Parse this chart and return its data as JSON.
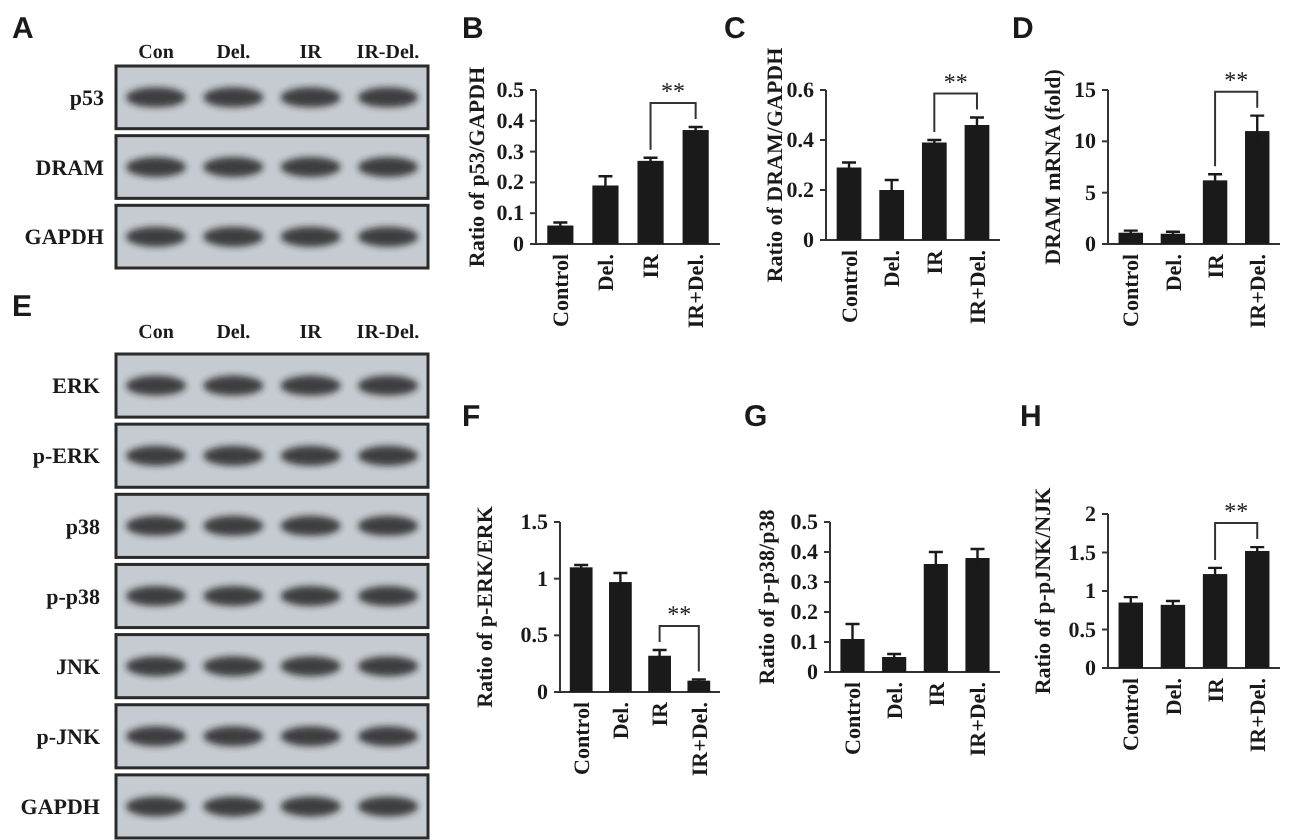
{
  "chart_data": [
    {
      "type": "other",
      "title": "A",
      "categories": [
        "Con",
        "Del.",
        "IR",
        "IR-Del."
      ],
      "y_categories": [
        "p53",
        "DRAM",
        "GAPDH"
      ]
    },
    {
      "type": "bar",
      "title": "B",
      "ylabel": "Ratio of p53/GAPDH",
      "categories": [
        "Control",
        "Del.",
        "IR",
        "IR+Del."
      ],
      "values": [
        0.06,
        0.19,
        0.27,
        0.37
      ],
      "errors": [
        0.01,
        0.03,
        0.01,
        0.01
      ],
      "color": "#1a1a1a",
      "ylim": [
        0,
        0.5
      ],
      "yticks": [
        0,
        0.1,
        0.2,
        0.3,
        0.4,
        0.5
      ],
      "annotations": [
        "**"
      ]
    },
    {
      "type": "bar",
      "title": "C",
      "ylabel": "Ratio of DRAM/GAPDH",
      "categories": [
        "Control",
        "Del.",
        "IR",
        "IR+Del."
      ],
      "values": [
        0.29,
        0.2,
        0.39,
        0.46
      ],
      "errors": [
        0.02,
        0.04,
        0.01,
        0.03
      ],
      "color": "#1a1a1a",
      "ylim": [
        0,
        0.6
      ],
      "yticks": [
        0,
        0.2,
        0.4,
        0.6
      ],
      "annotations": [
        "**"
      ]
    },
    {
      "type": "bar",
      "title": "D",
      "ylabel": "DRAM mRNA (fold)",
      "categories": [
        "Control",
        "Del.",
        "IR",
        "IR+Del."
      ],
      "values": [
        1.1,
        1,
        6.2,
        11
      ],
      "errors": [
        0.2,
        0.2,
        0.6,
        1.5
      ],
      "color": "#1a1a1a",
      "ylim": [
        0,
        15
      ],
      "yticks": [
        0,
        5,
        10,
        15
      ],
      "annotations": [
        "**"
      ]
    },
    {
      "type": "other",
      "title": "E",
      "categories": [
        "Con",
        "Del.",
        "IR",
        "IR-Del."
      ],
      "y_categories": [
        "ERK",
        "p-ERK",
        "p38",
        "p-p38",
        "JNK",
        "p-JNK",
        "GAPDH"
      ]
    },
    {
      "type": "bar",
      "title": "F",
      "ylabel": "Ratio of p-ERK/ERK",
      "categories": [
        "Control",
        "Del.",
        "IR",
        "IR+Del."
      ],
      "values": [
        1.1,
        0.97,
        0.32,
        0.1
      ],
      "errors": [
        0.02,
        0.08,
        0.05,
        0.01
      ],
      "color": "#1a1a1a",
      "ylim": [
        0,
        1.5
      ],
      "yticks": [
        0,
        0.5,
        1,
        1.5
      ],
      "annotations": [
        "**"
      ]
    },
    {
      "type": "bar",
      "title": "G",
      "ylabel": "Ratio of p-p38/p38",
      "categories": [
        "Control",
        "Del.",
        "IR",
        "IR+Del."
      ],
      "values": [
        0.11,
        0.05,
        0.36,
        0.38
      ],
      "errors": [
        0.05,
        0.01,
        0.04,
        0.03
      ],
      "color": "#1a1a1a",
      "ylim": [
        0,
        0.5
      ],
      "yticks": [
        0,
        0.1,
        0.2,
        0.3,
        0.4,
        0.5
      ]
    },
    {
      "type": "bar",
      "title": "H",
      "ylabel": "Ratio of p-pJNK/NJK",
      "categories": [
        "Control",
        "Del.",
        "IR",
        "IR+Del."
      ],
      "values": [
        0.85,
        0.82,
        1.22,
        1.52
      ],
      "errors": [
        0.07,
        0.05,
        0.08,
        0.05
      ],
      "color": "#1a1a1a",
      "ylim": [
        0,
        2
      ],
      "yticks": [
        0,
        0.5,
        1,
        1.5,
        2
      ],
      "annotations": [
        "**"
      ]
    }
  ]
}
